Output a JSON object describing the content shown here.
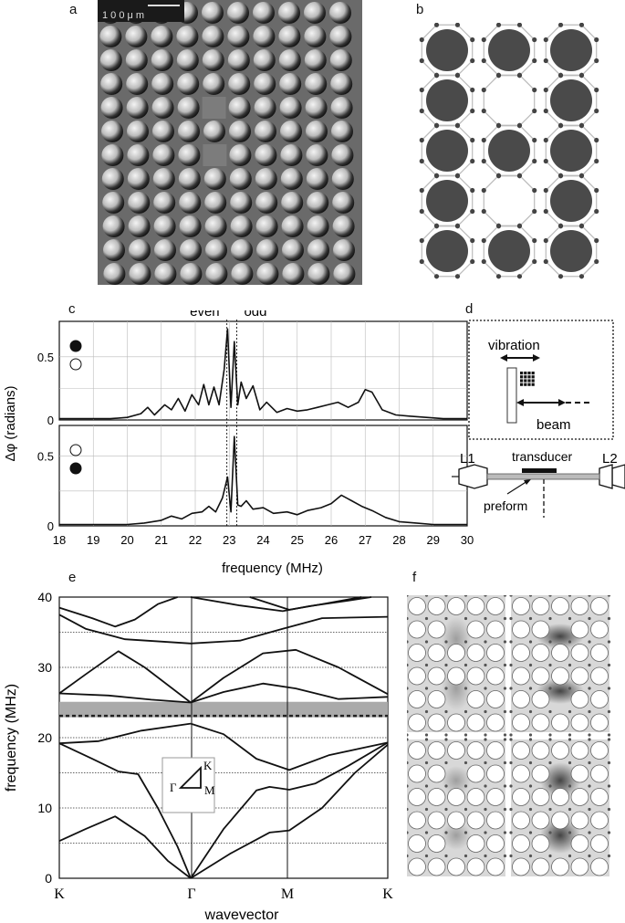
{
  "panels": {
    "a": "a",
    "b": "b",
    "c": "c",
    "d": "d",
    "e": "e",
    "f": "f"
  },
  "micrograph": {
    "scale_bar": "1 0 0 μ m"
  },
  "chart_c": {
    "type": "line",
    "annotations": [
      "even",
      "odd"
    ],
    "ylabel": "Δφ (radians)",
    "xlabel": "frequency (MHz)",
    "xlim": [
      18,
      30
    ],
    "xticks": [
      "18",
      "19",
      "20",
      "21",
      "22",
      "23",
      "24",
      "25",
      "26",
      "27",
      "28",
      "29",
      "30"
    ],
    "yticks": [
      "0",
      "0.5"
    ],
    "even_line": 22.93,
    "odd_line": 23.22,
    "top": {
      "ylim": [
        0,
        0.78
      ],
      "legend_markers": [
        "filled circle",
        "open circle"
      ],
      "x": [
        18,
        18.5,
        19,
        19.5,
        20,
        20.4,
        20.6,
        20.8,
        21.1,
        21.3,
        21.5,
        21.7,
        21.9,
        22.1,
        22.25,
        22.4,
        22.55,
        22.7,
        22.85,
        22.95,
        23.05,
        23.15,
        23.25,
        23.35,
        23.5,
        23.7,
        23.9,
        24.1,
        24.4,
        24.7,
        25.0,
        25.3,
        25.6,
        25.9,
        26.2,
        26.5,
        26.8,
        27.0,
        27.2,
        27.5,
        27.9,
        28.3,
        28.8,
        29.3,
        30
      ],
      "y": [
        0.01,
        0.01,
        0.01,
        0.01,
        0.02,
        0.05,
        0.1,
        0.04,
        0.12,
        0.08,
        0.17,
        0.07,
        0.2,
        0.12,
        0.28,
        0.12,
        0.26,
        0.12,
        0.4,
        0.72,
        0.1,
        0.62,
        0.12,
        0.3,
        0.17,
        0.27,
        0.08,
        0.14,
        0.06,
        0.09,
        0.07,
        0.08,
        0.1,
        0.12,
        0.14,
        0.1,
        0.14,
        0.24,
        0.22,
        0.08,
        0.04,
        0.03,
        0.02,
        0.01,
        0.01
      ]
    },
    "bottom": {
      "ylim": [
        0,
        0.72
      ],
      "legend_markers": [
        "open circle",
        "filled circle"
      ],
      "x": [
        18,
        18.5,
        19,
        19.5,
        20,
        20.5,
        21,
        21.3,
        21.6,
        21.9,
        22.2,
        22.4,
        22.6,
        22.8,
        22.95,
        23.05,
        23.15,
        23.25,
        23.35,
        23.5,
        23.7,
        24,
        24.3,
        24.7,
        25,
        25.3,
        25.7,
        26,
        26.3,
        26.6,
        26.9,
        27.2,
        27.6,
        28,
        28.5,
        29,
        29.5,
        30
      ],
      "y": [
        0.01,
        0.01,
        0.01,
        0.01,
        0.01,
        0.02,
        0.04,
        0.07,
        0.05,
        0.09,
        0.1,
        0.14,
        0.1,
        0.2,
        0.35,
        0.1,
        0.64,
        0.15,
        0.14,
        0.18,
        0.12,
        0.13,
        0.09,
        0.1,
        0.08,
        0.11,
        0.13,
        0.16,
        0.22,
        0.18,
        0.14,
        0.11,
        0.06,
        0.03,
        0.02,
        0.01,
        0.01,
        0.01
      ]
    }
  },
  "schematic_d": {
    "vibration": "vibration",
    "beam": "beam",
    "L1": "L1",
    "L2": "L2",
    "transducer": "transducer",
    "preform": "preform"
  },
  "chart_e": {
    "type": "line",
    "ylabel": "frequency (MHz)",
    "xlabel": "wavevector",
    "ylim": [
      0,
      40
    ],
    "yticks": [
      "0",
      "10",
      "20",
      "30",
      "40"
    ],
    "xtick_labels": [
      "K",
      "Γ",
      "M",
      "K"
    ],
    "inset_labels": {
      "K": "K",
      "Gamma": "Γ",
      "M": "M"
    },
    "band_gap": [
      22.9,
      25.1
    ],
    "defect_mode": 23.1
  }
}
